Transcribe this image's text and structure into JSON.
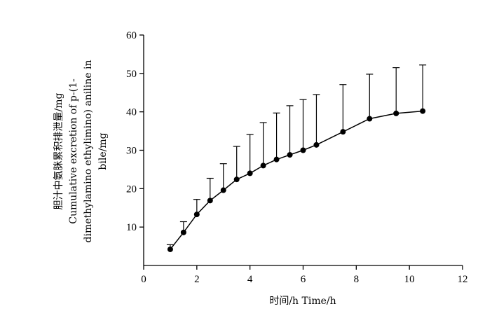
{
  "chart_data": {
    "type": "line",
    "title": "",
    "xlabel": "时间/h  Time/h",
    "ylabel_lines": [
      "胆汁中氨脒累积排泄量/mg",
      "Cumulative excretion of p-(1-",
      "dimethylamino ethylimino) aniline in",
      "bile/mg"
    ],
    "xlim": [
      0,
      12
    ],
    "ylim": [
      0,
      60
    ],
    "xticks": [
      0,
      2,
      4,
      6,
      8,
      10,
      12
    ],
    "yticks": [
      10,
      20,
      30,
      40,
      50,
      60
    ],
    "grid": false,
    "series": [
      {
        "x": [
          1.0,
          1.5,
          2.0,
          2.5,
          3.0,
          3.5,
          4.0,
          4.5,
          5.0,
          5.5,
          6.0,
          6.5,
          7.5,
          8.5,
          9.5,
          10.5
        ],
        "values": [
          4.2,
          8.6,
          13.3,
          16.9,
          19.6,
          22.4,
          24.0,
          26.0,
          27.6,
          28.8,
          30.0,
          31.4,
          34.8,
          38.2,
          39.6,
          40.2
        ],
        "error_upper": [
          5.4,
          11.4,
          17.2,
          22.7,
          26.5,
          31.0,
          34.1,
          37.2,
          39.7,
          41.6,
          43.2,
          44.5,
          47.1,
          49.8,
          51.5,
          52.2
        ]
      }
    ],
    "colors": {
      "line": "#000000",
      "marker": "#000000"
    }
  }
}
